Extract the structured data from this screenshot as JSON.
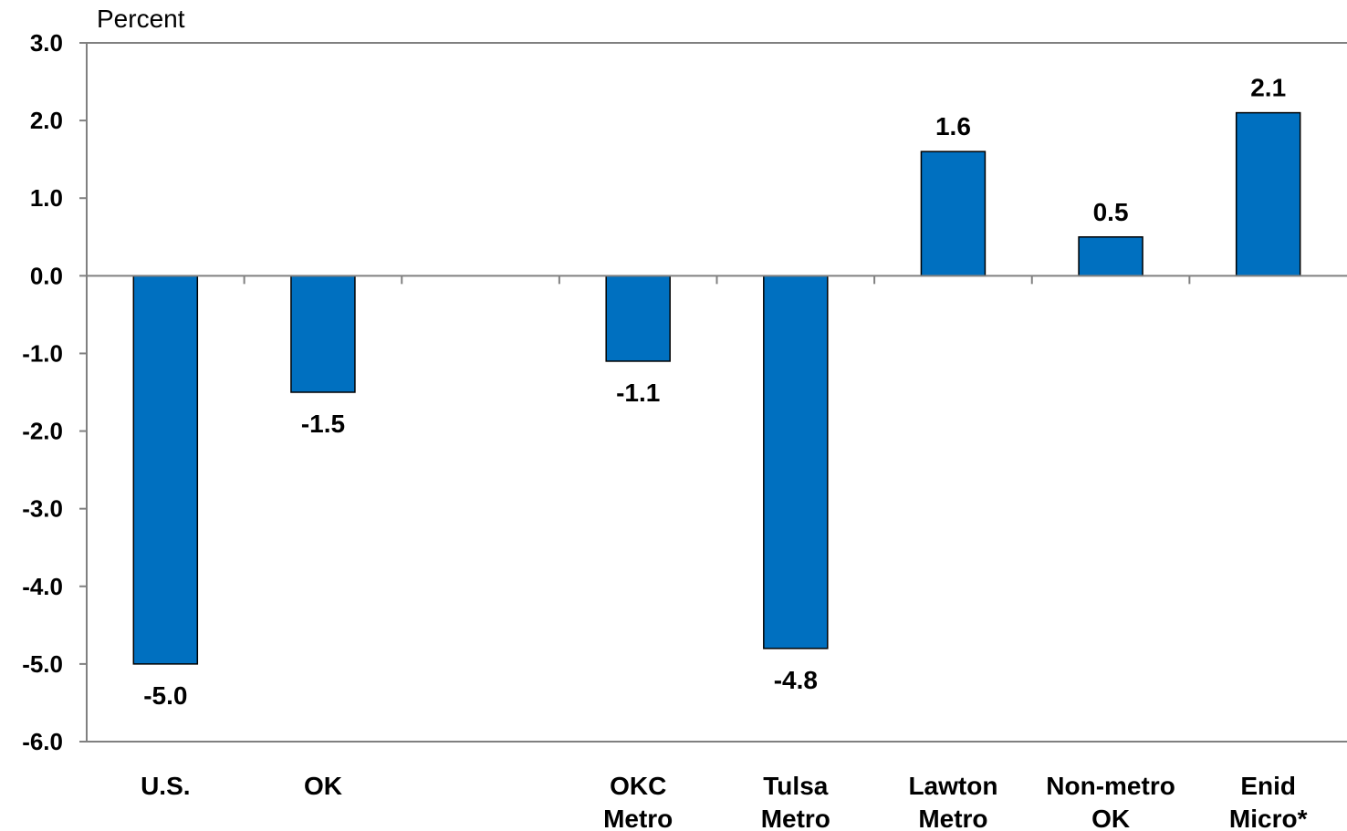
{
  "chart_data": {
    "type": "bar",
    "ylabel": "Percent",
    "ylim": [
      -6,
      3
    ],
    "yticks": [
      "3.0",
      "2.0",
      "1.0",
      "0.0",
      "-1.0",
      "-2.0",
      "-3.0",
      "-4.0",
      "-5.0",
      "-6.0"
    ],
    "categories": [
      [
        "U.S."
      ],
      [
        "OK"
      ],
      [],
      [
        "OKC",
        "Metro"
      ],
      [
        "Tulsa",
        "Metro"
      ],
      [
        "Lawton",
        "Metro"
      ],
      [
        "Non-metro",
        "OK"
      ],
      [
        "Enid",
        "Micro*"
      ]
    ],
    "values": [
      -5.0,
      -1.5,
      null,
      -1.1,
      -4.8,
      1.6,
      0.5,
      2.1
    ],
    "data_labels": [
      "-5.0",
      "-1.5",
      "",
      "-1.1",
      "-4.8",
      "1.6",
      "0.5",
      "2.1"
    ],
    "bar_color": "#0070C0",
    "bar_outline": "#000000",
    "grid": false,
    "legend": "none"
  }
}
